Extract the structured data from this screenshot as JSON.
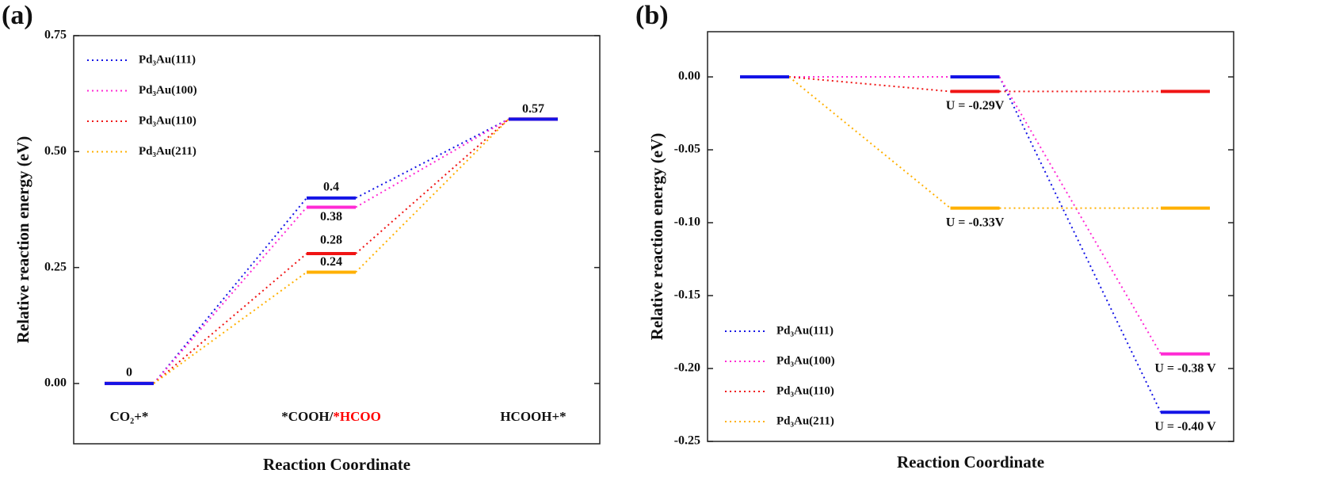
{
  "chart_data": [
    {
      "type": "energy_diagram",
      "panel": "(a)",
      "ylabel": "Relative  reaction energy (eV)",
      "xlabel": "Reaction Coordinate",
      "categories": [
        "CO₂+*",
        "*COOH/*HCOO",
        "HCOOH+*"
      ],
      "category_highlight_color": "#ff0000",
      "ylim": [
        -0.13,
        0.75
      ],
      "yticks": [
        {
          "value": 0,
          "label": "0.00"
        },
        {
          "value": 0.25,
          "label": "0.25"
        },
        {
          "value": 0.5,
          "label": "0.50"
        },
        {
          "value": 0.75,
          "label": "0.75"
        }
      ],
      "legend": "upper left",
      "show_values": true,
      "series": [
        {
          "name": "Pd₃Au(111)",
          "color": "#1414e6",
          "values": [
            0,
            0.4,
            0.57
          ]
        },
        {
          "name": "Pd₃Au(100)",
          "color": "#ff2ad4",
          "values": [
            0,
            0.38,
            0.57
          ]
        },
        {
          "name": "Pd₃Au(110)",
          "color": "#f01414",
          "values": [
            0,
            0.28,
            0.57
          ]
        },
        {
          "name": "Pd₃Au(211)",
          "color": "#ffb000",
          "values": [
            0,
            0.24,
            0.57
          ]
        }
      ]
    },
    {
      "type": "energy_diagram",
      "panel": "(b)",
      "ylabel": "Relative  reaction energy (eV)",
      "xlabel": "Reaction Coordinate",
      "categories": [
        null,
        null,
        null
      ],
      "ylim": [
        -0.25,
        0.031
      ],
      "yticks": [
        {
          "value": 0,
          "label": "0.00"
        },
        {
          "value": -0.05,
          "label": "-0.05"
        },
        {
          "value": -0.1,
          "label": "-0.10"
        },
        {
          "value": -0.15,
          "label": "-0.15"
        },
        {
          "value": -0.2,
          "label": "-0.20"
        },
        {
          "value": -0.25,
          "label": "-0.25"
        }
      ],
      "legend": "lower left",
      "show_values": false,
      "series": [
        {
          "name": "Pd₃Au(111)",
          "color": "#1414e6",
          "values": [
            0,
            0,
            -0.23
          ],
          "annotation": "U = -0.40 V"
        },
        {
          "name": "Pd₃Au(100)",
          "color": "#ff2ad4",
          "values": [
            0,
            0,
            -0.19
          ],
          "annotation": "U = -0.38 V"
        },
        {
          "name": "Pd₃Au(110)",
          "color": "#f01414",
          "values": [
            0,
            -0.01,
            -0.01
          ],
          "annotation": "U = -0.29V"
        },
        {
          "name": "Pd₃Au(211)",
          "color": "#ffb000",
          "values": [
            0,
            -0.09,
            -0.09
          ],
          "annotation": "U = -0.33V"
        }
      ]
    }
  ]
}
